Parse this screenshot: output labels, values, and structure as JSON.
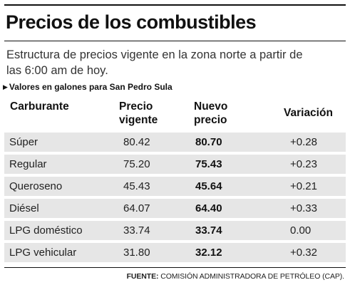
{
  "title": "Precios de los combustibles",
  "subtitle": "Estructura de precios vigente en la zona norte a partir de las 6:00 am de hoy.",
  "units_note": "Valores en galones para San Pedro Sula",
  "columns": {
    "fuel": "Carburante",
    "previous_line1": "Precio",
    "previous_line2": "vigente",
    "new_line1": "Nuevo",
    "new_line2": "precio",
    "change": "Variación"
  },
  "rows": [
    {
      "fuel": "Súper",
      "previous": "80.42",
      "new": "80.70",
      "change": "+0.28"
    },
    {
      "fuel": "Regular",
      "previous": "75.20",
      "new": "75.43",
      "change": "+0.23"
    },
    {
      "fuel": "Queroseno",
      "previous": "45.43",
      "new": "45.64",
      "change": "+0.21"
    },
    {
      "fuel": "Diésel",
      "previous": "64.07",
      "new": "64.40",
      "change": "+0.33"
    },
    {
      "fuel": "LPG doméstico",
      "previous": "33.74",
      "new": "33.74",
      "change": "0.00"
    },
    {
      "fuel": "LPG vehicular",
      "previous": "31.80",
      "new": "32.12",
      "change": "+0.32"
    }
  ],
  "source": {
    "label": "FUENTE:",
    "text": "COMISIÓN ADMINISTRADORA DE PETRÓLEO (CAP)."
  }
}
